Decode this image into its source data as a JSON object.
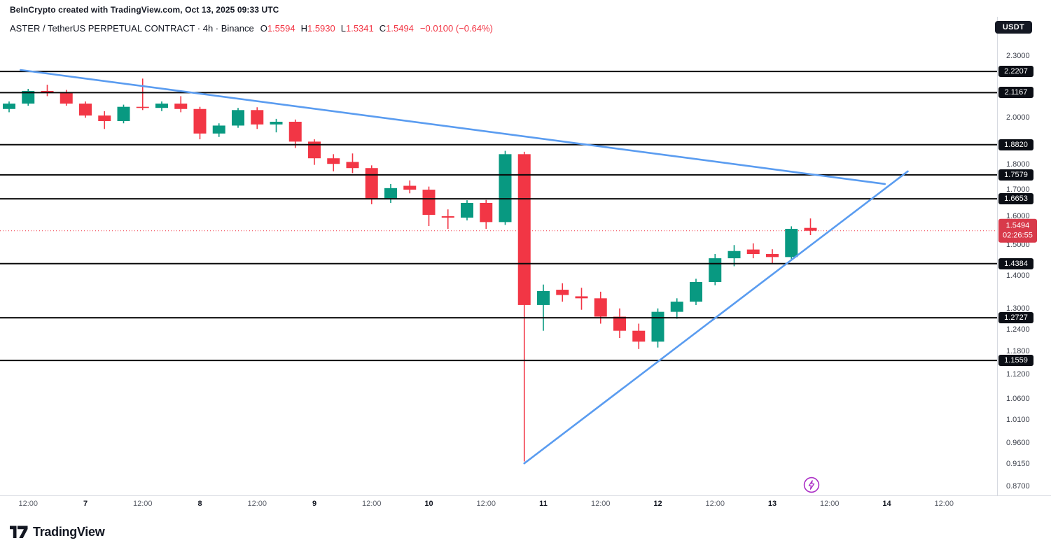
{
  "attribution": "BeInCrypto created with TradingView.com, Oct 13, 2025 09:33 UTC",
  "header": {
    "symbol": "ASTER / TetherUS PERPETUAL CONTRACT · 4h · Binance",
    "ohlc": [
      {
        "label": "O",
        "value": "1.5594"
      },
      {
        "label": "H",
        "value": "1.5930"
      },
      {
        "label": "L",
        "value": "1.5341"
      },
      {
        "label": "C",
        "value": "1.5494"
      }
    ],
    "change": "−0.0100 (−0.64%)",
    "quote_badge": "USDT"
  },
  "colors": {
    "up": "#089981",
    "down": "#f23645",
    "trendline": "#5a9cf0",
    "level_line": "#0a0a0a",
    "current_badge": "#d83a4a",
    "level_badge": "#0b0e15",
    "separator": "#d6d9e0"
  },
  "chart_data": {
    "type": "candlestick",
    "symbol": "ASTERUSDT Perpetual",
    "exchange": "Binance",
    "timeframe": "4h",
    "scale": "logarithmic",
    "price_range": [
      0.87,
      2.3
    ],
    "candles": [
      {
        "o": 2.04,
        "h": 2.075,
        "l": 2.025,
        "c": 2.065
      },
      {
        "o": 2.065,
        "h": 2.135,
        "l": 2.055,
        "c": 2.125
      },
      {
        "o": 2.125,
        "h": 2.155,
        "l": 2.1,
        "c": 2.115
      },
      {
        "o": 2.115,
        "h": 2.13,
        "l": 2.055,
        "c": 2.065
      },
      {
        "o": 2.065,
        "h": 2.075,
        "l": 2.0,
        "c": 2.01
      },
      {
        "o": 2.01,
        "h": 2.03,
        "l": 1.95,
        "c": 1.985
      },
      {
        "o": 1.985,
        "h": 2.06,
        "l": 1.975,
        "c": 2.05
      },
      {
        "o": 2.05,
        "h": 2.185,
        "l": 2.035,
        "c": 2.045
      },
      {
        "o": 2.045,
        "h": 2.075,
        "l": 2.03,
        "c": 2.065
      },
      {
        "o": 2.065,
        "h": 2.1,
        "l": 2.025,
        "c": 2.04
      },
      {
        "o": 2.04,
        "h": 2.05,
        "l": 1.905,
        "c": 1.93
      },
      {
        "o": 1.93,
        "h": 1.975,
        "l": 1.915,
        "c": 1.965
      },
      {
        "o": 1.965,
        "h": 2.045,
        "l": 1.955,
        "c": 2.035
      },
      {
        "o": 2.035,
        "h": 2.048,
        "l": 1.95,
        "c": 1.97
      },
      {
        "o": 1.97,
        "h": 1.995,
        "l": 1.935,
        "c": 1.982
      },
      {
        "o": 1.982,
        "h": 1.992,
        "l": 1.868,
        "c": 1.895
      },
      {
        "o": 1.895,
        "h": 1.905,
        "l": 1.798,
        "c": 1.825
      },
      {
        "o": 1.825,
        "h": 1.842,
        "l": 1.772,
        "c": 1.802
      },
      {
        "o": 1.81,
        "h": 1.845,
        "l": 1.765,
        "c": 1.785
      },
      {
        "o": 1.785,
        "h": 1.796,
        "l": 1.645,
        "c": 1.665
      },
      {
        "o": 1.665,
        "h": 1.722,
        "l": 1.65,
        "c": 1.706
      },
      {
        "o": 1.715,
        "h": 1.736,
        "l": 1.686,
        "c": 1.7
      },
      {
        "o": 1.7,
        "h": 1.712,
        "l": 1.566,
        "c": 1.606
      },
      {
        "o": 1.601,
        "h": 1.626,
        "l": 1.556,
        "c": 1.596
      },
      {
        "o": 1.596,
        "h": 1.66,
        "l": 1.586,
        "c": 1.65
      },
      {
        "o": 1.65,
        "h": 1.661,
        "l": 1.556,
        "c": 1.58
      },
      {
        "o": 1.58,
        "h": 1.856,
        "l": 1.57,
        "c": 1.842
      },
      {
        "o": 1.842,
        "h": 1.852,
        "l": 0.92,
        "c": 1.31
      },
      {
        "o": 1.31,
        "h": 1.372,
        "l": 1.236,
        "c": 1.352
      },
      {
        "o": 1.356,
        "h": 1.376,
        "l": 1.32,
        "c": 1.34
      },
      {
        "o": 1.336,
        "h": 1.362,
        "l": 1.296,
        "c": 1.33
      },
      {
        "o": 1.33,
        "h": 1.35,
        "l": 1.256,
        "c": 1.276
      },
      {
        "o": 1.276,
        "h": 1.3,
        "l": 1.216,
        "c": 1.236
      },
      {
        "o": 1.236,
        "h": 1.256,
        "l": 1.186,
        "c": 1.206
      },
      {
        "o": 1.206,
        "h": 1.3,
        "l": 1.19,
        "c": 1.29
      },
      {
        "o": 1.29,
        "h": 1.33,
        "l": 1.27,
        "c": 1.32
      },
      {
        "o": 1.32,
        "h": 1.39,
        "l": 1.31,
        "c": 1.38
      },
      {
        "o": 1.38,
        "h": 1.47,
        "l": 1.37,
        "c": 1.456
      },
      {
        "o": 1.456,
        "h": 1.5,
        "l": 1.43,
        "c": 1.48
      },
      {
        "o": 1.485,
        "h": 1.506,
        "l": 1.456,
        "c": 1.47
      },
      {
        "o": 1.47,
        "h": 1.486,
        "l": 1.44,
        "c": 1.46
      },
      {
        "o": 1.46,
        "h": 1.565,
        "l": 1.45,
        "c": 1.556
      },
      {
        "o": 1.5594,
        "h": 1.593,
        "l": 1.5341,
        "c": 1.5494
      }
    ],
    "levels": [
      {
        "price": 2.2207,
        "label": "2.2207"
      },
      {
        "price": 2.1167,
        "label": "2.1167"
      },
      {
        "price": 1.882,
        "label": "1.8820"
      },
      {
        "price": 1.7579,
        "label": "1.7579"
      },
      {
        "price": 1.6653,
        "label": "1.6653"
      },
      {
        "price": 1.4384,
        "label": "1.4384"
      },
      {
        "price": 1.2727,
        "label": "1.2727"
      },
      {
        "price": 1.1559,
        "label": "1.1559"
      }
    ],
    "trendlines": [
      {
        "name": "descending-resistance",
        "i1": 0.6,
        "p1": 2.228,
        "i2": 45.9,
        "p2": 1.722
      },
      {
        "name": "ascending-support",
        "i1": 27.0,
        "p1": 0.916,
        "i2": 47.1,
        "p2": 1.772
      }
    ],
    "current_price": {
      "value": "1.5494",
      "countdown": "02:26:55",
      "price": 1.5494
    },
    "price_axis_ticks": [
      {
        "price": 2.3,
        "label": "2.3000"
      },
      {
        "price": 2.0,
        "label": "2.0000"
      },
      {
        "price": 1.8,
        "label": "1.8000"
      },
      {
        "price": 1.7,
        "label": "1.7000"
      },
      {
        "price": 1.6,
        "label": "1.6000"
      },
      {
        "price": 1.5,
        "label": "1.5000"
      },
      {
        "price": 1.4,
        "label": "1.4000"
      },
      {
        "price": 1.3,
        "label": "1.3000"
      },
      {
        "price": 1.24,
        "label": "1.2400"
      },
      {
        "price": 1.18,
        "label": "1.1800"
      },
      {
        "price": 1.12,
        "label": "1.1200"
      },
      {
        "price": 1.06,
        "label": "1.0600"
      },
      {
        "price": 1.01,
        "label": "1.0100"
      },
      {
        "price": 0.96,
        "label": "0.9600"
      },
      {
        "price": 0.915,
        "label": "0.9150"
      },
      {
        "price": 0.87,
        "label": "0.8700"
      }
    ],
    "time_ticks": [
      {
        "index": 1,
        "label": "12:00",
        "major": false
      },
      {
        "index": 4,
        "label": "7",
        "major": true
      },
      {
        "index": 7,
        "label": "12:00",
        "major": false
      },
      {
        "index": 10,
        "label": "8",
        "major": true
      },
      {
        "index": 13,
        "label": "12:00",
        "major": false
      },
      {
        "index": 16,
        "label": "9",
        "major": true
      },
      {
        "index": 19,
        "label": "12:00",
        "major": false
      },
      {
        "index": 22,
        "label": "10",
        "major": true
      },
      {
        "index": 25,
        "label": "12:00",
        "major": false
      },
      {
        "index": 28,
        "label": "11",
        "major": true
      },
      {
        "index": 31,
        "label": "12:00",
        "major": false
      },
      {
        "index": 34,
        "label": "12",
        "major": true
      },
      {
        "index": 37,
        "label": "12:00",
        "major": false
      },
      {
        "index": 40,
        "label": "13",
        "major": true
      },
      {
        "index": 43,
        "label": "12:00",
        "major": false
      },
      {
        "index": 46,
        "label": "14",
        "major": true
      },
      {
        "index": 49,
        "label": "12:00",
        "major": false
      }
    ],
    "event_marker": {
      "index": 42,
      "icon": "lightning",
      "color": "#ab2fc6"
    }
  },
  "footer": {
    "brand": "TradingView"
  }
}
